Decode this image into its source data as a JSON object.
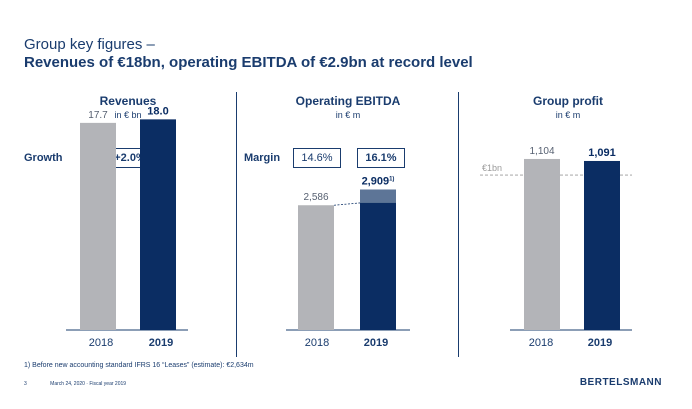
{
  "slide": {
    "title_line1": "Group key figures –",
    "title_line2": "Revenues of €18bn, operating EBITDA of €2.9bn at record level",
    "footnote": "1) Before new accounting standard IFRS 16 “Leases” (estimate): €2,634m",
    "page_number": "3",
    "date_text": "March 24, 2020 · Fiscal year 2019",
    "brand": "BERTELSMANN"
  },
  "panels": [
    {
      "title": "Revenues",
      "unit": "in € bn",
      "kpi_label": "Growth",
      "kpi_values": [
        "+2.0%"
      ]
    },
    {
      "title": "Operating EBITDA",
      "unit": "in € m",
      "kpi_label": "Margin",
      "kpi_values": [
        "14.6%",
        "16.1%"
      ]
    },
    {
      "title": "Group profit",
      "unit": "in € m",
      "kpi_label": "",
      "kpi_values": []
    }
  ],
  "colors": {
    "prior_year_bar": "#b3b4b8",
    "current_year_bar": "#0b2d63",
    "ebitda_increment": "#5d7597",
    "text": "#1a3c6e",
    "reference_line": "#9a9a9a"
  },
  "chart_data": [
    {
      "type": "bar",
      "title": "Revenues",
      "categories": [
        "2018",
        "2019"
      ],
      "values": [
        17.7,
        18.0
      ],
      "value_labels": [
        "17.7",
        "18.0"
      ],
      "ylim": [
        0,
        18.8
      ]
    },
    {
      "type": "bar",
      "title": "Operating EBITDA",
      "categories": [
        "2018",
        "2019"
      ],
      "values": [
        2586,
        2909
      ],
      "value_labels": [
        "2,586",
        "2,909"
      ],
      "value_label_footnote": "1)",
      "highlighted_increment": {
        "category": "2019",
        "from": 2634,
        "to": 2909
      },
      "ylim": [
        0,
        4560
      ]
    },
    {
      "type": "bar",
      "title": "Group profit",
      "categories": [
        "2018",
        "2019"
      ],
      "values": [
        1104,
        1091
      ],
      "value_labels": [
        "1,104",
        "1,091"
      ],
      "reference_line": {
        "value": 1000,
        "label": "€1bn"
      },
      "ylim": [
        0,
        1420
      ]
    }
  ]
}
